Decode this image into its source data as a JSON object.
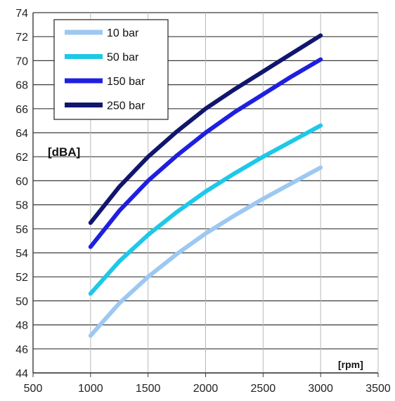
{
  "chart_data": {
    "type": "line",
    "title": "",
    "xlabel": "[rpm]",
    "ylabel": "[dBA]",
    "xlim": [
      500,
      3500
    ],
    "ylim": [
      44,
      74
    ],
    "x_ticks": [
      500,
      1000,
      1500,
      2000,
      2500,
      3000,
      3500
    ],
    "y_ticks": [
      44,
      46,
      48,
      50,
      52,
      54,
      56,
      58,
      60,
      62,
      64,
      66,
      68,
      70,
      72,
      74
    ],
    "grid": true,
    "legend_position": "top-left",
    "x": [
      1000,
      1250,
      1500,
      1750,
      2000,
      2250,
      2500,
      2750,
      3000
    ],
    "series": [
      {
        "name": "10 bar",
        "color": "#9cc8f2",
        "values": [
          47.1,
          49.8,
          52.0,
          53.9,
          55.6,
          57.1,
          58.5,
          59.8,
          61.1
        ]
      },
      {
        "name": "50 bar",
        "color": "#1ec8e8",
        "values": [
          50.6,
          53.3,
          55.5,
          57.4,
          59.1,
          60.6,
          62.0,
          63.3,
          64.6
        ]
      },
      {
        "name": "150 bar",
        "color": "#1f1fe0",
        "values": [
          54.5,
          57.5,
          60.0,
          62.1,
          64.0,
          65.7,
          67.2,
          68.7,
          70.1
        ]
      },
      {
        "name": "250 bar",
        "color": "#10166e",
        "values": [
          56.5,
          59.5,
          62.0,
          64.1,
          66.0,
          67.6,
          69.1,
          70.6,
          72.1
        ]
      }
    ]
  }
}
